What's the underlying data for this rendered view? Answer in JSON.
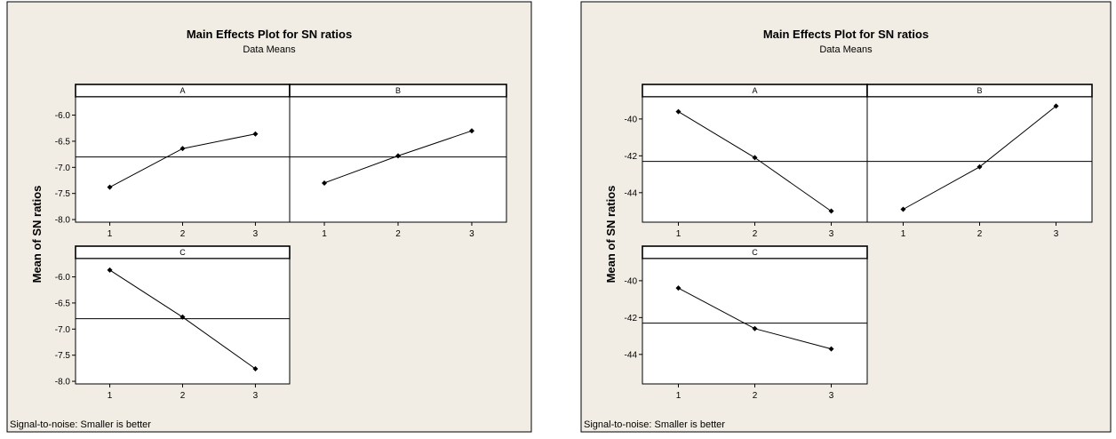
{
  "figure_style": {
    "background": "#f1ede4",
    "panel_background": "#ffffff",
    "line_color": "#000000"
  },
  "chart_data": [
    {
      "type": "line",
      "title": "Main Effects Plot for SN ratios",
      "subtitle": "Data Means",
      "ylabel": "Mean of SN ratios",
      "footnote": "Signal-to-noise: Smaller is better",
      "overall_mean": -6.8,
      "ylim": [
        -8.05,
        -5.65
      ],
      "yticks": [
        -6.0,
        -6.5,
        -7.0,
        -7.5,
        -8.0
      ],
      "ytick_labels": [
        "-6.0",
        "-6.5",
        "-7.0",
        "-7.5",
        "-8.0"
      ],
      "panels": [
        {
          "label": "A",
          "x": [
            1,
            2,
            3
          ],
          "x_labels": [
            "1",
            "2",
            "3"
          ],
          "values": [
            -7.38,
            -6.64,
            -6.36
          ]
        },
        {
          "label": "B",
          "x": [
            1,
            2,
            3
          ],
          "x_labels": [
            "1",
            "2",
            "3"
          ],
          "values": [
            -7.3,
            -6.78,
            -6.3
          ]
        },
        {
          "label": "C",
          "x": [
            1,
            2,
            3
          ],
          "x_labels": [
            "1",
            "2",
            "3"
          ],
          "values": [
            -5.87,
            -6.77,
            -7.76
          ]
        }
      ]
    },
    {
      "type": "line",
      "title": "Main Effects Plot for SN ratios",
      "subtitle": "Data Means",
      "ylabel": "Mean of SN ratios",
      "footnote": "Signal-to-noise: Smaller is better",
      "overall_mean": -42.3,
      "ylim": [
        -45.6,
        -38.8
      ],
      "yticks": [
        -40,
        -42,
        -44
      ],
      "ytick_labels": [
        "-40",
        "-42",
        "-44"
      ],
      "panels": [
        {
          "label": "A",
          "x": [
            1,
            2,
            3
          ],
          "x_labels": [
            "1",
            "2",
            "3"
          ],
          "values": [
            -39.6,
            -42.1,
            -45.0
          ]
        },
        {
          "label": "B",
          "x": [
            1,
            2,
            3
          ],
          "x_labels": [
            "1",
            "2",
            "3"
          ],
          "values": [
            -44.9,
            -42.6,
            -39.3
          ]
        },
        {
          "label": "C",
          "x": [
            1,
            2,
            3
          ],
          "x_labels": [
            "1",
            "2",
            "3"
          ],
          "values": [
            -40.4,
            -42.6,
            -43.7
          ]
        }
      ]
    }
  ]
}
